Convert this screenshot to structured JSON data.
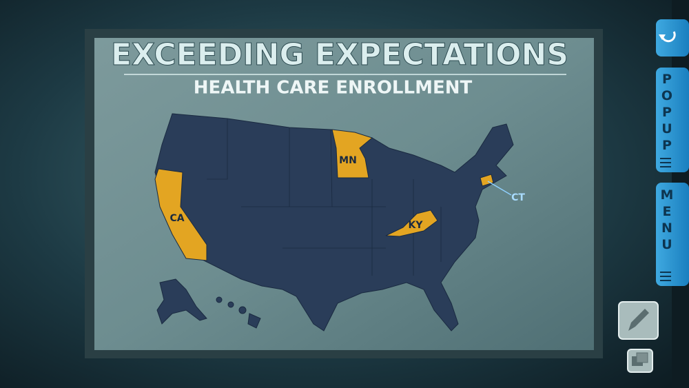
{
  "title": "EXCEEDING EXPECTATIONS",
  "subtitle": "HEALTH CARE ENROLLMENT",
  "states": [
    {
      "label": "CA"
    },
    {
      "label": "MN"
    },
    {
      "label": "KY"
    },
    {
      "label": "CT"
    }
  ],
  "sidebar": {
    "popup": "POPUP",
    "menu": "MENU"
  }
}
